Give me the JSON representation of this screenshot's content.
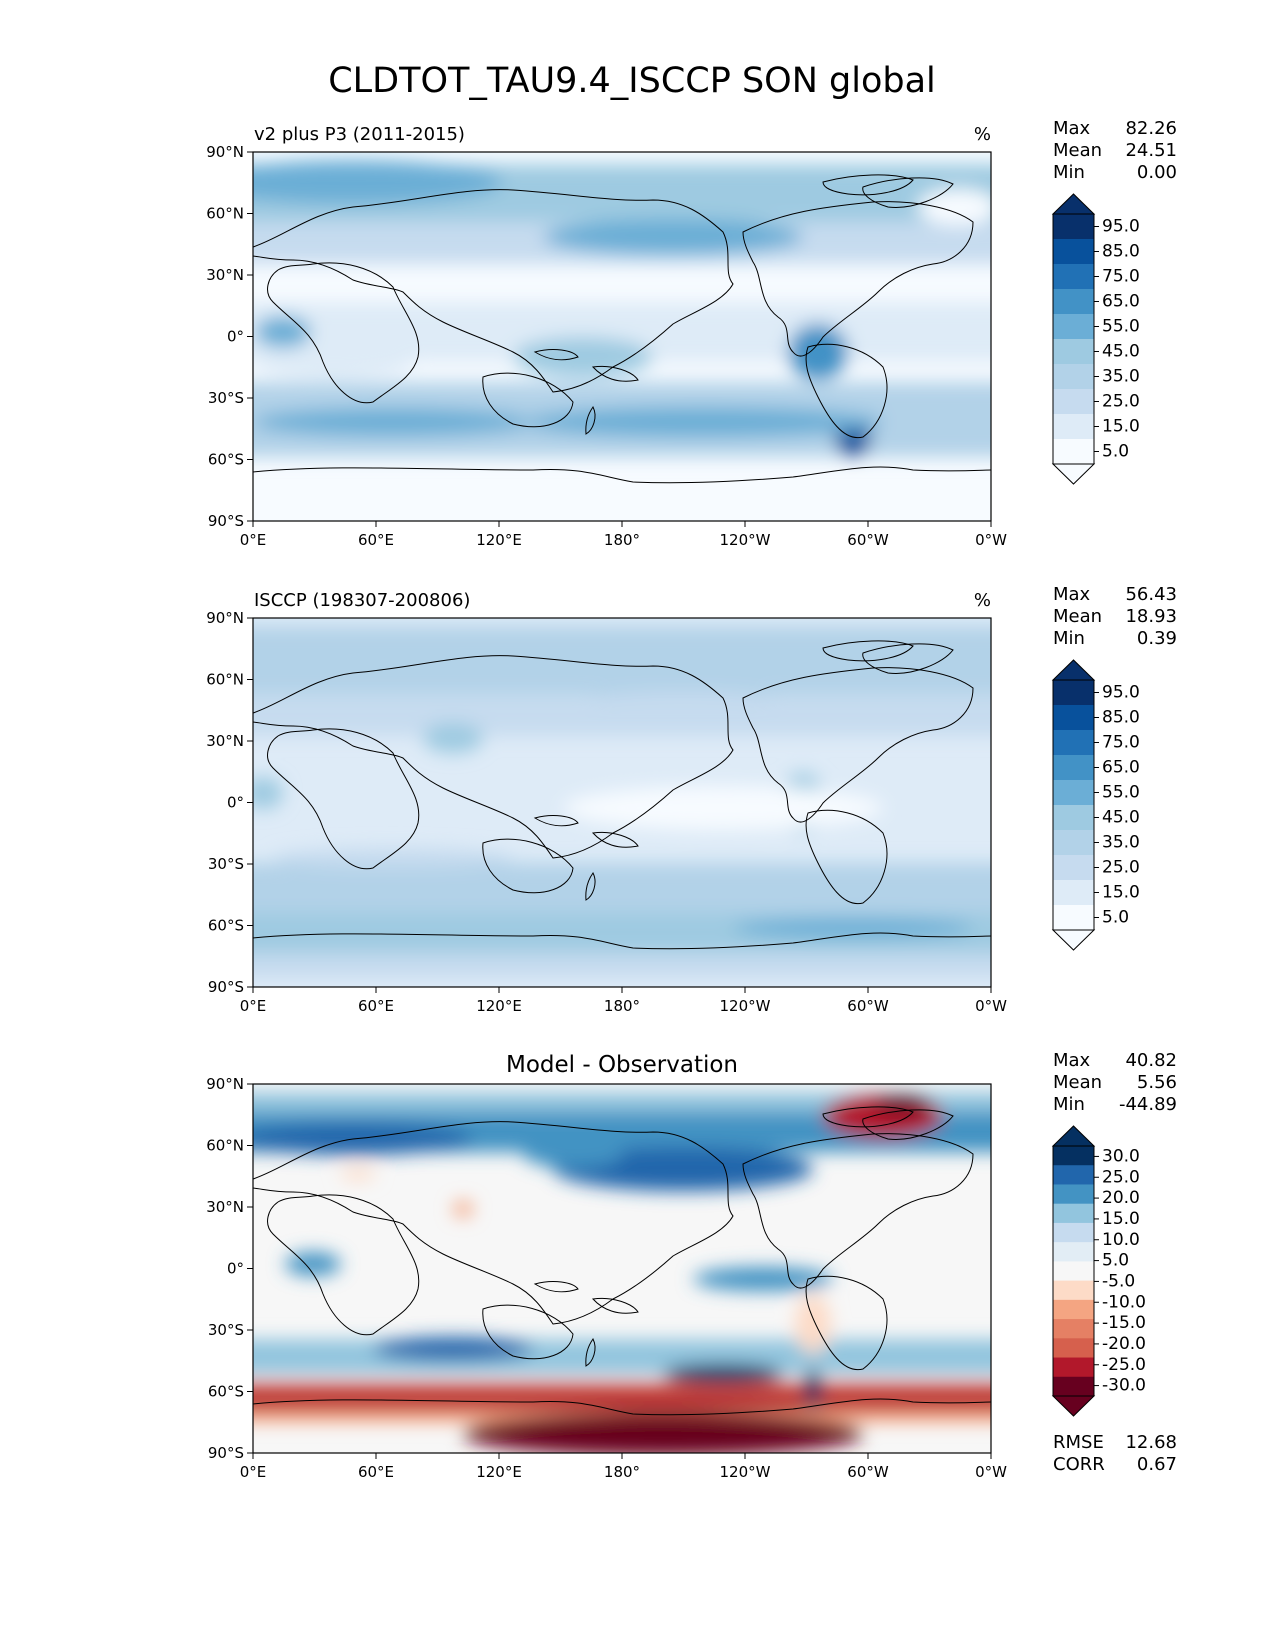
{
  "figure": {
    "title": "CLDTOT_TAU9.4_ISCCP SON global"
  },
  "axes": {
    "lat_ticks": [
      "90°N",
      "60°N",
      "30°N",
      "0°",
      "30°S",
      "60°S",
      "90°S"
    ],
    "lon_ticks": [
      "0°E",
      "60°E",
      "120°E",
      "180°",
      "120°W",
      "60°W",
      "0°W"
    ]
  },
  "colormaps": {
    "sequential": [
      "#f7fbff",
      "#deebf7",
      "#c6dbef",
      "#b2d2e8",
      "#9ecae1",
      "#6baed6",
      "#4292c6",
      "#2171b5",
      "#08519c",
      "#08306b"
    ],
    "diverging_blue": [
      "#f7f7f7",
      "#e2edf5",
      "#c6dbef",
      "#92c5de",
      "#4393c3",
      "#2166ac",
      "#053061"
    ],
    "diverging_red": [
      "#fddbc7",
      "#f4a582",
      "#e58064",
      "#d6604d",
      "#b2182b",
      "#67001f"
    ]
  },
  "panels": [
    {
      "id": "test",
      "left_title": "v2 plus P3 (2011-2015)",
      "center_title": "",
      "units": "%",
      "stats": {
        "labels": [
          "Max",
          "Mean",
          "Min"
        ],
        "values": [
          "82.26",
          "24.51",
          "0.00"
        ]
      },
      "colorbar": {
        "type": "sequential",
        "ticks": [
          "95.0",
          "85.0",
          "75.0",
          "65.0",
          "55.0",
          "45.0",
          "35.0",
          "25.0",
          "15.0",
          "5.0"
        ]
      },
      "footer": null
    },
    {
      "id": "reference",
      "left_title": "ISCCP (198307-200806)",
      "center_title": "",
      "units": "%",
      "stats": {
        "labels": [
          "Max",
          "Mean",
          "Min"
        ],
        "values": [
          "56.43",
          "18.93",
          "0.39"
        ]
      },
      "colorbar": {
        "type": "sequential",
        "ticks": [
          "95.0",
          "85.0",
          "75.0",
          "65.0",
          "55.0",
          "45.0",
          "35.0",
          "25.0",
          "15.0",
          "5.0"
        ]
      },
      "footer": null
    },
    {
      "id": "diff",
      "left_title": "",
      "center_title": "Model - Observation",
      "units": "",
      "stats": {
        "labels": [
          "Max",
          "Mean",
          "Min"
        ],
        "values": [
          "40.82",
          "5.56",
          "-44.89"
        ]
      },
      "colorbar": {
        "type": "diverging",
        "ticks": [
          "30.0",
          "25.0",
          "20.0",
          "15.0",
          "10.0",
          "5.0",
          "-5.0",
          "-10.0",
          "-15.0",
          "-20.0",
          "-25.0",
          "-30.0"
        ]
      },
      "footer": {
        "labels": [
          "RMSE",
          "CORR"
        ],
        "values": [
          "12.68",
          "0.67"
        ]
      }
    }
  ]
}
